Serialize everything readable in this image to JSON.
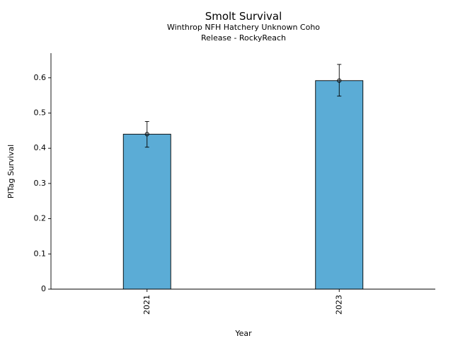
{
  "chart_data": {
    "type": "bar",
    "title": "Smolt Survival",
    "subtitle_lines": [
      "Winthrop NFH Hatchery Unknown Coho",
      "Release - RockyReach"
    ],
    "xlabel": "Year",
    "ylabel": "PITag Survival",
    "categories": [
      "2021",
      "2023"
    ],
    "values": [
      0.44,
      0.592
    ],
    "error_bars": [
      {
        "lower": 0.403,
        "upper": 0.476
      },
      {
        "lower": 0.548,
        "upper": 0.638
      }
    ],
    "ylim": [
      0,
      0.67
    ],
    "yticks": [
      0,
      0.1,
      0.2,
      0.3,
      0.4,
      0.5,
      0.6
    ],
    "ytick_labels": [
      "0",
      "0.1",
      "0.2",
      "0.3",
      "0.4",
      "0.5",
      "0.6"
    ],
    "bar_color": "#5BACD6",
    "edge_color": "#000000",
    "grid": false,
    "legend": "none"
  }
}
